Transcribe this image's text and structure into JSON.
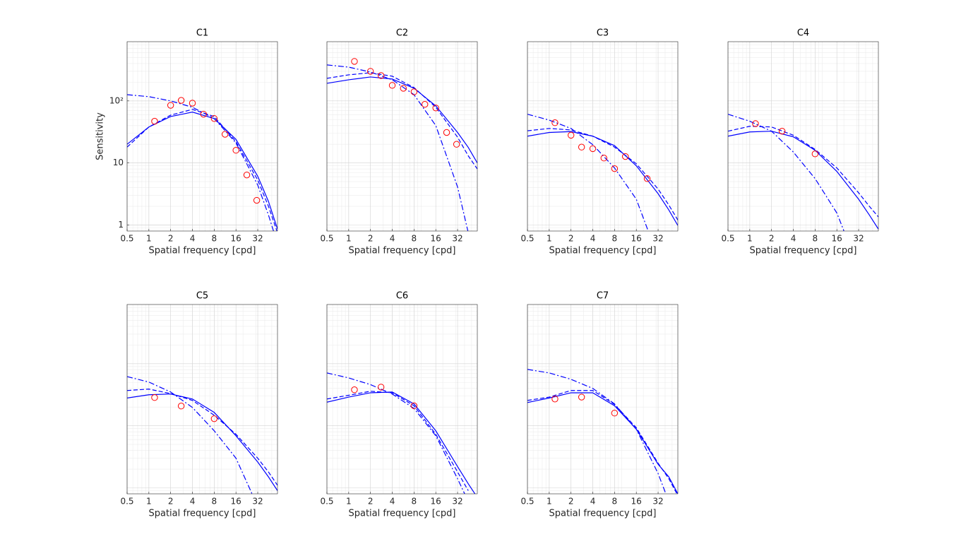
{
  "chart_data": [
    {
      "type": "line",
      "title": "C1",
      "x_label": "Spatial frequency [cpd]",
      "y_label": "Sensitivity",
      "xscale": "log",
      "yscale": "log",
      "xlim": [
        0.5,
        60
      ],
      "ylim": [
        0.8,
        900
      ],
      "xticks": [
        0.5,
        1,
        2,
        4,
        8,
        16,
        32
      ],
      "yticks": [
        1,
        10,
        {
          "value": 100,
          "label": "10²"
        }
      ],
      "grid": true,
      "minor_grid": true,
      "series": [
        {
          "mode": "line",
          "dash": "solid",
          "color": "#0000ff",
          "x": [
            0.5,
            1,
            2,
            4,
            8,
            16,
            32,
            45,
            60
          ],
          "values": [
            20,
            38,
            56,
            66,
            52,
            24,
            6.1,
            2.4,
            0.86
          ]
        },
        {
          "mode": "line",
          "dash": "dashed",
          "color": "#0000ff",
          "x": [
            0.5,
            1,
            2,
            4,
            8,
            16,
            32,
            45,
            60
          ],
          "values": [
            18,
            38,
            59,
            73,
            56,
            22,
            5.3,
            2,
            0.75
          ]
        },
        {
          "mode": "line",
          "dash": "dashdot",
          "color": "#0000ff",
          "x": [
            0.5,
            1,
            2,
            4,
            8,
            16,
            32,
            45,
            60
          ],
          "values": [
            126,
            117,
            100,
            79,
            52,
            21,
            4.4,
            1.45,
            0.5
          ]
        },
        {
          "mode": "markers",
          "color": "#ff0000",
          "x": [
            1.2,
            2,
            2.8,
            4,
            5.7,
            8,
            11.3,
            16,
            22.6,
            31
          ],
          "values": [
            47,
            85,
            102,
            92,
            61,
            52,
            29,
            16,
            6.4,
            2.5
          ]
        }
      ]
    },
    {
      "type": "line",
      "title": "C2",
      "x_label": "Spatial frequency [cpd]",
      "xscale": "log",
      "yscale": "log",
      "xlim": [
        0.5,
        60
      ],
      "ylim": [
        0.8,
        900
      ],
      "xticks": [
        0.5,
        1,
        2,
        4,
        8,
        16,
        32
      ],
      "grid": true,
      "minor_grid": true,
      "series": [
        {
          "mode": "line",
          "dash": "solid",
          "color": "#0000ff",
          "x": [
            0.5,
            1,
            2,
            4,
            8,
            16,
            32,
            45,
            60
          ],
          "values": [
            192,
            219,
            243,
            225,
            160,
            83,
            31,
            17.8,
            10
          ]
        },
        {
          "mode": "line",
          "dash": "dashed",
          "color": "#0000ff",
          "x": [
            0.5,
            1,
            2,
            4,
            8,
            16,
            32,
            45,
            60
          ],
          "values": [
            231,
            263,
            284,
            250,
            164,
            79,
            26,
            13,
            8
          ]
        },
        {
          "mode": "line",
          "dash": "dashdot",
          "color": "#0000ff",
          "x": [
            0.5,
            1,
            2,
            4,
            8,
            16,
            32,
            45
          ],
          "values": [
            380,
            350,
            292,
            219,
            126,
            40,
            4.1,
            0.75
          ]
        },
        {
          "mode": "markers",
          "color": "#ff0000",
          "x": [
            1.2,
            2,
            2.8,
            4,
            5.7,
            8,
            11.3,
            16,
            22.6,
            31
          ],
          "values": [
            433,
            300,
            256,
            178,
            160,
            140,
            88,
            77,
            31,
            20
          ]
        }
      ]
    },
    {
      "type": "line",
      "title": "C3",
      "x_label": "Spatial frequency [cpd]",
      "xscale": "log",
      "yscale": "log",
      "xlim": [
        0.5,
        60
      ],
      "ylim": [
        0.8,
        900
      ],
      "xticks": [
        0.5,
        1,
        2,
        4,
        8,
        16,
        32
      ],
      "grid": true,
      "minor_grid": true,
      "series": [
        {
          "mode": "line",
          "dash": "solid",
          "color": "#0000ff",
          "x": [
            0.5,
            1,
            2,
            4,
            8,
            16,
            32,
            45,
            60
          ],
          "values": [
            27,
            31,
            32,
            27,
            19,
            9,
            3.2,
            1.75,
            0.98
          ]
        },
        {
          "mode": "line",
          "dash": "dashed",
          "color": "#0000ff",
          "x": [
            0.5,
            1,
            2,
            4,
            8,
            16,
            32,
            45,
            60
          ],
          "values": [
            33,
            36,
            34,
            27,
            18,
            9.7,
            3.8,
            2.1,
            1.2
          ]
        },
        {
          "mode": "line",
          "dash": "dashdot",
          "color": "#0000ff",
          "x": [
            0.5,
            1,
            2,
            4,
            8,
            16,
            32
          ],
          "values": [
            61,
            49,
            36,
            19.7,
            8.3,
            2.6,
            0.3
          ]
        },
        {
          "mode": "markers",
          "color": "#ff0000",
          "x": [
            1.2,
            2,
            2.8,
            4,
            5.7,
            8,
            11.3,
            22.6
          ],
          "values": [
            44.5,
            28,
            18,
            17,
            12,
            8.1,
            12.7,
            5.6
          ]
        }
      ]
    },
    {
      "type": "line",
      "title": "C4",
      "x_label": "Spatial frequency [cpd]",
      "xscale": "log",
      "yscale": "log",
      "xlim": [
        0.5,
        60
      ],
      "ylim": [
        0.8,
        900
      ],
      "xticks": [
        0.5,
        1,
        2,
        4,
        8,
        16,
        32
      ],
      "grid": true,
      "minor_grid": true,
      "series": [
        {
          "mode": "line",
          "dash": "solid",
          "color": "#0000ff",
          "x": [
            0.5,
            1,
            2,
            4,
            8,
            16,
            32,
            45,
            60
          ],
          "values": [
            27,
            31.6,
            32.5,
            26.4,
            16,
            7.3,
            2.6,
            1.45,
            0.86
          ]
        },
        {
          "mode": "line",
          "dash": "dashed",
          "color": "#0000ff",
          "x": [
            0.5,
            1,
            2,
            4,
            8,
            16,
            32,
            45,
            60
          ],
          "values": [
            32.5,
            39,
            38,
            28,
            16.5,
            8.3,
            3.3,
            2,
            1.35
          ]
        },
        {
          "mode": "line",
          "dash": "dashdot",
          "color": "#0000ff",
          "x": [
            0.5,
            1,
            2,
            4,
            8,
            16,
            32
          ],
          "values": [
            61,
            47,
            32.5,
            15,
            5.6,
            1.56,
            0.2
          ]
        },
        {
          "mode": "markers",
          "color": "#ff0000",
          "x": [
            1.2,
            2.8,
            8
          ],
          "values": [
            43,
            32.5,
            14
          ]
        }
      ]
    },
    {
      "type": "line",
      "title": "C5",
      "x_label": "Spatial frequency [cpd]",
      "xscale": "log",
      "yscale": "log",
      "xlim": [
        0.5,
        60
      ],
      "ylim": [
        0.8,
        900
      ],
      "xticks": [
        0.5,
        1,
        2,
        4,
        8,
        16,
        32
      ],
      "grid": true,
      "minor_grid": true,
      "series": [
        {
          "mode": "line",
          "dash": "solid",
          "color": "#0000ff",
          "x": [
            0.5,
            1,
            2,
            4,
            8,
            16,
            32,
            45,
            60
          ],
          "values": [
            28,
            31.6,
            32.5,
            27,
            16.4,
            6.9,
            2.6,
            1.5,
            0.9
          ]
        },
        {
          "mode": "line",
          "dash": "dashed",
          "color": "#0000ff",
          "x": [
            0.5,
            1,
            2,
            4,
            8,
            16,
            32,
            45,
            60
          ],
          "values": [
            37,
            39,
            33,
            25.6,
            14.8,
            7.3,
            3,
            1.8,
            1.1
          ]
        },
        {
          "mode": "line",
          "dash": "dashdot",
          "color": "#0000ff",
          "x": [
            0.5,
            1,
            2,
            4,
            8,
            16,
            32
          ],
          "values": [
            62,
            50.6,
            35,
            19.7,
            8.3,
            3,
            0.5
          ]
        },
        {
          "mode": "markers",
          "color": "#ff0000",
          "x": [
            1.2,
            2.8,
            8
          ],
          "values": [
            28.5,
            20.8,
            13
          ]
        }
      ]
    },
    {
      "type": "line",
      "title": "C6",
      "x_label": "Spatial frequency [cpd]",
      "xscale": "log",
      "yscale": "log",
      "xlim": [
        0.5,
        60
      ],
      "ylim": [
        0.8,
        900
      ],
      "xticks": [
        0.5,
        1,
        2,
        4,
        8,
        16,
        32
      ],
      "grid": true,
      "minor_grid": true,
      "series": [
        {
          "mode": "line",
          "dash": "solid",
          "color": "#0000ff",
          "x": [
            0.5,
            1,
            2,
            4,
            8,
            16,
            32,
            45,
            60
          ],
          "values": [
            24,
            29,
            34,
            35,
            22.5,
            8.3,
            2.2,
            1.16,
            0.7
          ]
        },
        {
          "mode": "line",
          "dash": "dashed",
          "color": "#0000ff",
          "x": [
            0.5,
            1,
            2,
            4,
            8,
            16,
            32,
            45
          ],
          "values": [
            27,
            31,
            36,
            34,
            21,
            7.3,
            1.8,
            0.9
          ]
        },
        {
          "mode": "line",
          "dash": "dashdot",
          "color": "#0000ff",
          "x": [
            0.5,
            1,
            2,
            4,
            8,
            16,
            32,
            45
          ],
          "values": [
            71,
            59,
            46,
            32.5,
            19,
            6.9,
            1.4,
            0.6
          ]
        },
        {
          "mode": "markers",
          "color": "#ff0000",
          "x": [
            1.2,
            2.8,
            8
          ],
          "values": [
            38,
            42,
            21
          ]
        }
      ]
    },
    {
      "type": "line",
      "title": "C7",
      "x_label": "Spatial frequency [cpd]",
      "xscale": "log",
      "yscale": "log",
      "xlim": [
        0.5,
        60
      ],
      "ylim": [
        0.8,
        900
      ],
      "xticks": [
        0.5,
        1,
        2,
        4,
        8,
        16,
        32
      ],
      "grid": true,
      "minor_grid": true,
      "series": [
        {
          "mode": "line",
          "dash": "solid",
          "color": "#0000ff",
          "x": [
            0.5,
            1,
            2,
            4,
            8,
            16,
            32,
            45,
            60
          ],
          "values": [
            23.7,
            28,
            34,
            34,
            21,
            8.8,
            2.4,
            1.5,
            0.8
          ]
        },
        {
          "mode": "line",
          "dash": "dashed",
          "color": "#0000ff",
          "x": [
            0.5,
            1,
            2,
            4,
            8,
            16,
            32,
            45,
            60
          ],
          "values": [
            25.6,
            29,
            37,
            37,
            22,
            9.3,
            2.5,
            1.4,
            0.75
          ]
        },
        {
          "mode": "line",
          "dash": "dashdot",
          "color": "#0000ff",
          "x": [
            0.5,
            1,
            2,
            4,
            8,
            16,
            32,
            45
          ],
          "values": [
            81,
            71,
            56,
            40,
            22.5,
            8.8,
            1.7,
            0.6
          ]
        },
        {
          "mode": "markers",
          "color": "#ff0000",
          "x": [
            1.2,
            2.8,
            8
          ],
          "values": [
            27,
            29,
            16
          ]
        }
      ]
    }
  ]
}
